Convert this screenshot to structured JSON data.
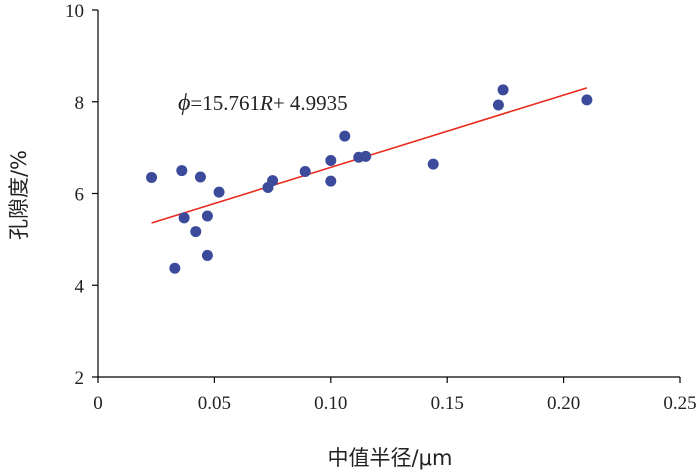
{
  "chart_data": {
    "type": "scatter",
    "xlabel": "中值半径/μm",
    "ylabel": "孔隙度/%",
    "xlim": [
      0,
      0.25
    ],
    "ylim": [
      2,
      10
    ],
    "xticks": [
      "0",
      "0.05",
      "0.10",
      "0.15",
      "0.20",
      "0.25"
    ],
    "yticks": [
      "2",
      "4",
      "6",
      "8",
      "10"
    ],
    "grid": false,
    "legend": "none",
    "marker_color": "#3b4a9a",
    "trendline_color": "#e8291c",
    "equation": {
      "symbol": "ϕ",
      "body": "=15.761",
      "var": "R",
      "tail": "+ 4.9935"
    },
    "trendline": {
      "slope": 15.761,
      "intercept": 4.9935,
      "x_range": [
        0.023,
        0.21
      ]
    },
    "points": [
      {
        "x": 0.023,
        "y": 6.35
      },
      {
        "x": 0.033,
        "y": 4.37
      },
      {
        "x": 0.036,
        "y": 6.5
      },
      {
        "x": 0.037,
        "y": 5.47
      },
      {
        "x": 0.042,
        "y": 5.17
      },
      {
        "x": 0.044,
        "y": 6.36
      },
      {
        "x": 0.047,
        "y": 5.51
      },
      {
        "x": 0.047,
        "y": 4.65
      },
      {
        "x": 0.052,
        "y": 6.03
      },
      {
        "x": 0.073,
        "y": 6.13
      },
      {
        "x": 0.075,
        "y": 6.28
      },
      {
        "x": 0.089,
        "y": 6.48
      },
      {
        "x": 0.1,
        "y": 6.72
      },
      {
        "x": 0.1,
        "y": 6.27
      },
      {
        "x": 0.106,
        "y": 7.25
      },
      {
        "x": 0.112,
        "y": 6.79
      },
      {
        "x": 0.115,
        "y": 6.81
      },
      {
        "x": 0.144,
        "y": 6.64
      },
      {
        "x": 0.172,
        "y": 7.93
      },
      {
        "x": 0.174,
        "y": 8.26
      },
      {
        "x": 0.21,
        "y": 8.04
      }
    ]
  }
}
